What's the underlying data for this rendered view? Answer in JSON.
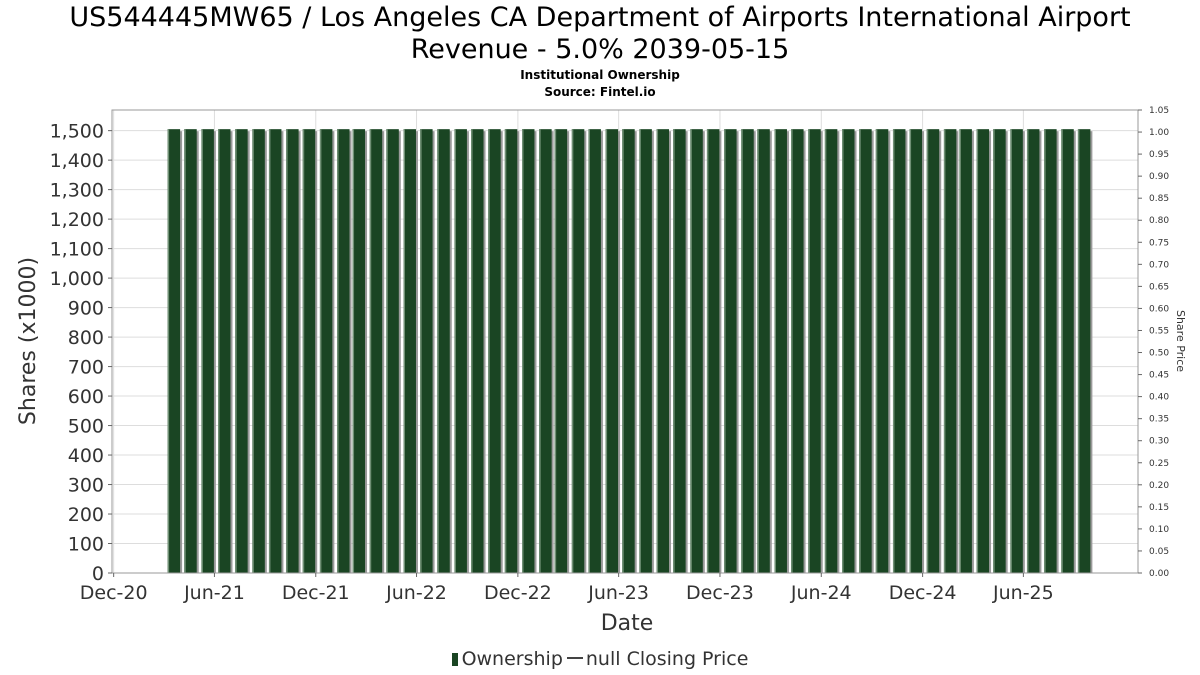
{
  "chart_data": {
    "type": "bar",
    "title_line1": "US544445MW65 / Los Angeles CA Department of Airports International Airport",
    "title_line2": "Revenue - 5.0% 2039-05-15",
    "subtitle": "Institutional Ownership",
    "source": "Source: Fintel.io",
    "xlabel": "Date",
    "ylabel": "Shares (x1000)",
    "y2label": "Share Price",
    "ylim": [
      0,
      1570
    ],
    "y2lim": [
      0,
      1.05
    ],
    "xlim": [
      "2020-11-28",
      "2025-12-25"
    ],
    "yticks": [
      0,
      100,
      200,
      300,
      400,
      500,
      600,
      700,
      800,
      900,
      1000,
      1100,
      1200,
      1300,
      1400,
      1500
    ],
    "ytick_labels": [
      "0",
      "100",
      "200",
      "300",
      "400",
      "500",
      "600",
      "700",
      "800",
      "900",
      "1,000",
      "1,100",
      "1,200",
      "1,300",
      "1,400",
      "1,500"
    ],
    "y2ticks": [
      0.0,
      0.05,
      0.1,
      0.15,
      0.2,
      0.25,
      0.3,
      0.35,
      0.4,
      0.45,
      0.5,
      0.55,
      0.6,
      0.65,
      0.7,
      0.75,
      0.8,
      0.85,
      0.9,
      0.95,
      1.0,
      1.05
    ],
    "y2tick_labels": [
      "0.00",
      "0.05",
      "0.10",
      "0.15",
      "0.20",
      "0.25",
      "0.30",
      "0.35",
      "0.40",
      "0.45",
      "0.50",
      "0.55",
      "0.60",
      "0.65",
      "0.70",
      "0.75",
      "0.80",
      "0.85",
      "0.90",
      "0.95",
      "1.00",
      "1.05"
    ],
    "xticks": [
      {
        "label": "Dec-20",
        "date": "2020-12-01"
      },
      {
        "label": "Jun-21",
        "date": "2021-06-01"
      },
      {
        "label": "Dec-21",
        "date": "2021-12-01"
      },
      {
        "label": "Jun-22",
        "date": "2022-06-01"
      },
      {
        "label": "Dec-22",
        "date": "2022-12-01"
      },
      {
        "label": "Jun-23",
        "date": "2023-06-01"
      },
      {
        "label": "Dec-23",
        "date": "2023-12-01"
      },
      {
        "label": "Jun-24",
        "date": "2024-06-01"
      },
      {
        "label": "Dec-24",
        "date": "2024-12-01"
      },
      {
        "label": "Jun-25",
        "date": "2025-06-01"
      }
    ],
    "grid": true,
    "legend_position": "bottom-center",
    "series": [
      {
        "name": "Ownership",
        "color": "#1a4523",
        "x": [
          "2021-03-31",
          "2021-04-30",
          "2021-05-31",
          "2021-06-30",
          "2021-07-31",
          "2021-08-31",
          "2021-09-30",
          "2021-10-31",
          "2021-11-30",
          "2021-12-31",
          "2022-01-31",
          "2022-02-28",
          "2022-03-31",
          "2022-04-30",
          "2022-05-31",
          "2022-06-30",
          "2022-07-31",
          "2022-08-31",
          "2022-09-30",
          "2022-10-31",
          "2022-11-30",
          "2022-12-31",
          "2023-01-31",
          "2023-02-28",
          "2023-03-31",
          "2023-04-30",
          "2023-05-31",
          "2023-06-30",
          "2023-07-31",
          "2023-08-31",
          "2023-09-30",
          "2023-10-31",
          "2023-11-30",
          "2023-12-31",
          "2024-01-31",
          "2024-02-29",
          "2024-03-31",
          "2024-04-30",
          "2024-05-31",
          "2024-06-30",
          "2024-07-31",
          "2024-08-31",
          "2024-09-30",
          "2024-10-31",
          "2024-11-30",
          "2024-12-31",
          "2025-01-31",
          "2025-02-28",
          "2025-03-31",
          "2025-04-30",
          "2025-05-31",
          "2025-06-30",
          "2025-07-31",
          "2025-08-31",
          "2025-09-30"
        ],
        "values": [
          1505,
          1505,
          1505,
          1505,
          1505,
          1505,
          1505,
          1505,
          1505,
          1505,
          1505,
          1505,
          1505,
          1505,
          1505,
          1505,
          1505,
          1505,
          1505,
          1505,
          1505,
          1505,
          1505,
          1505,
          1505,
          1505,
          1505,
          1505,
          1505,
          1505,
          1505,
          1505,
          1505,
          1505,
          1505,
          1505,
          1505,
          1505,
          1505,
          1505,
          1505,
          1505,
          1505,
          1505,
          1505,
          1505,
          1505,
          1505,
          1505,
          1505,
          1505,
          1505,
          1505,
          1505,
          1505
        ]
      },
      {
        "name": "null Closing Price",
        "color": "#444444",
        "x": [],
        "values": []
      }
    ]
  }
}
